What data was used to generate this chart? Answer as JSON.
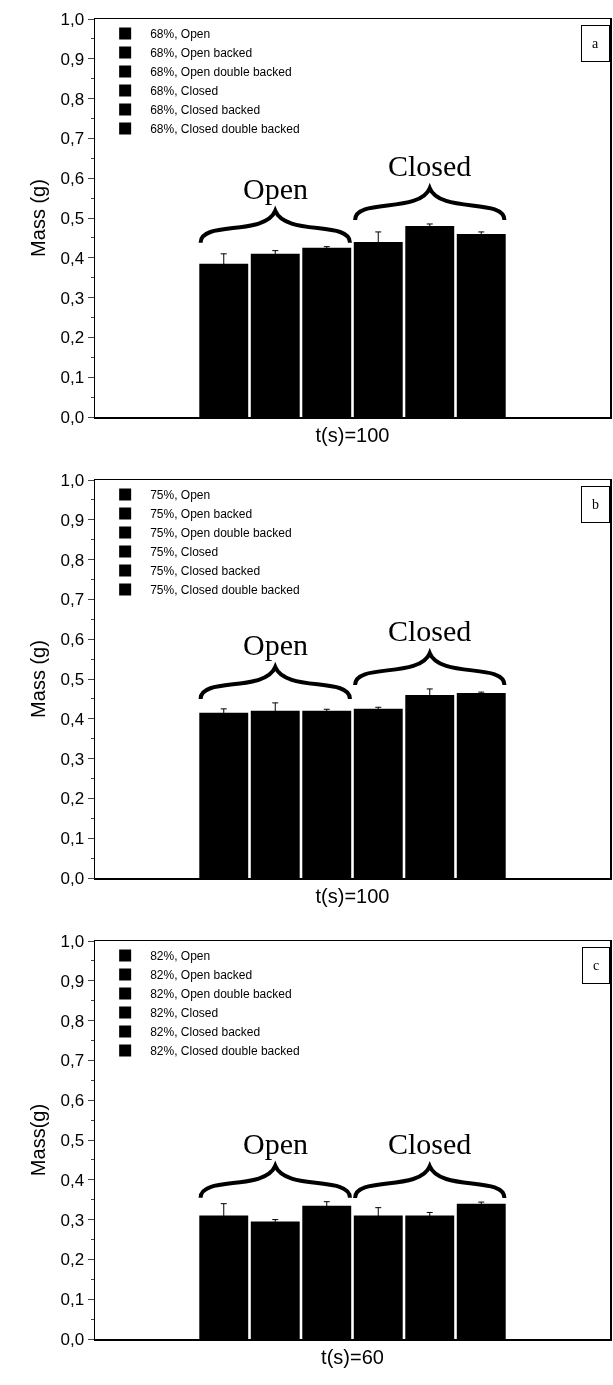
{
  "chart_data": [
    {
      "type": "bar",
      "xlabel": "t(s)=100",
      "ylabel": "Mass (g)",
      "categories": [
        null
      ],
      "ylim": [
        0,
        1
      ],
      "yticks": [
        {
          "value": 0,
          "label": "0,0"
        },
        {
          "value": 0.1,
          "label": "0,1"
        },
        {
          "value": 0.2,
          "label": "0,2"
        },
        {
          "value": 0.3,
          "label": "0,3"
        },
        {
          "value": 0.4,
          "label": "0,4"
        },
        {
          "value": 0.5,
          "label": "0,5"
        },
        {
          "value": 0.6,
          "label": "0,6"
        },
        {
          "value": 0.7,
          "label": "0,7"
        },
        {
          "value": 0.8,
          "label": "0,8"
        },
        {
          "value": 0.9,
          "label": "0,9"
        },
        {
          "value": 1,
          "label": "1,0"
        }
      ],
      "legend": "top left",
      "grid": false,
      "annotations": [
        "a",
        "Open",
        "Closed"
      ],
      "series": [
        {
          "name": "68%, Open",
          "color": "#000000",
          "values": [
            0.385
          ],
          "errors": [
            0.025
          ]
        },
        {
          "name": "68%, Open backed",
          "color": "#000000",
          "values": [
            0.41
          ],
          "errors": [
            0.008
          ]
        },
        {
          "name": "68%, Open double backed",
          "color": "#000000",
          "values": [
            0.425
          ],
          "errors": [
            0.003
          ]
        },
        {
          "name": "68%, Closed",
          "color": "#000000",
          "values": [
            0.44
          ],
          "errors": [
            0.025
          ]
        },
        {
          "name": "68%, Closed backed",
          "color": "#000000",
          "values": [
            0.48
          ],
          "errors": [
            0.005
          ]
        },
        {
          "name": "68%, Closed double backed",
          "color": "#000000",
          "values": [
            0.46
          ],
          "errors": [
            0.005
          ]
        }
      ]
    },
    {
      "type": "bar",
      "xlabel": "t(s)=100",
      "ylabel": "Mass (g)",
      "categories": [
        null
      ],
      "ylim": [
        0,
        1
      ],
      "yticks": [
        {
          "value": 0,
          "label": "0,0"
        },
        {
          "value": 0.1,
          "label": "0,1"
        },
        {
          "value": 0.2,
          "label": "0,2"
        },
        {
          "value": 0.3,
          "label": "0,3"
        },
        {
          "value": 0.4,
          "label": "0,4"
        },
        {
          "value": 0.5,
          "label": "0,5"
        },
        {
          "value": 0.6,
          "label": "0,6"
        },
        {
          "value": 0.7,
          "label": "0,7"
        },
        {
          "value": 0.8,
          "label": "0,8"
        },
        {
          "value": 0.9,
          "label": "0,9"
        },
        {
          "value": 1,
          "label": "1,0"
        }
      ],
      "legend": "top left",
      "grid": false,
      "annotations": [
        "b",
        "Open",
        "Closed"
      ],
      "series": [
        {
          "name": "75%, Open",
          "color": "#000000",
          "values": [
            0.415
          ],
          "errors": [
            0.01
          ]
        },
        {
          "name": "75%, Open backed",
          "color": "#000000",
          "values": [
            0.42
          ],
          "errors": [
            0.02
          ]
        },
        {
          "name": "75%, Open double backed",
          "color": "#000000",
          "values": [
            0.42
          ],
          "errors": [
            0.004
          ]
        },
        {
          "name": "75%, Closed",
          "color": "#000000",
          "values": [
            0.425
          ],
          "errors": [
            0.004
          ]
        },
        {
          "name": "75%, Closed backed",
          "color": "#000000",
          "values": [
            0.46
          ],
          "errors": [
            0.015
          ]
        },
        {
          "name": "75%, Closed double backed",
          "color": "#000000",
          "values": [
            0.465
          ],
          "errors": [
            0.002
          ]
        }
      ]
    },
    {
      "type": "bar",
      "xlabel": "t(s)=60",
      "ylabel": "Mass(g)",
      "categories": [
        null
      ],
      "ylim": [
        0,
        1
      ],
      "yticks": [
        {
          "value": 0,
          "label": "0,0"
        },
        {
          "value": 0.1,
          "label": "0,1"
        },
        {
          "value": 0.2,
          "label": "0,2"
        },
        {
          "value": 0.3,
          "label": "0,3"
        },
        {
          "value": 0.4,
          "label": "0,4"
        },
        {
          "value": 0.5,
          "label": "0,5"
        },
        {
          "value": 0.6,
          "label": "0,6"
        },
        {
          "value": 0.7,
          "label": "0,7"
        },
        {
          "value": 0.8,
          "label": "0,8"
        },
        {
          "value": 0.9,
          "label": "0,9"
        },
        {
          "value": 1,
          "label": "1,0"
        }
      ],
      "legend": "top left",
      "grid": false,
      "annotations": [
        "c",
        "Open",
        "Closed"
      ],
      "series": [
        {
          "name": "82%, Open",
          "color": "#000000",
          "values": [
            0.31
          ],
          "errors": [
            0.03
          ]
        },
        {
          "name": "82%, Open backed",
          "color": "#000000",
          "values": [
            0.295
          ],
          "errors": [
            0.005
          ]
        },
        {
          "name": "82%, Open double backed",
          "color": "#000000",
          "values": [
            0.335
          ],
          "errors": [
            0.01
          ]
        },
        {
          "name": "82%, Closed",
          "color": "#000000",
          "values": [
            0.31
          ],
          "errors": [
            0.02
          ]
        },
        {
          "name": "82%, Closed backed",
          "color": "#000000",
          "values": [
            0.31
          ],
          "errors": [
            0.008
          ]
        },
        {
          "name": "82%, Closed double backed",
          "color": "#000000",
          "values": [
            0.34
          ],
          "errors": [
            0.004
          ]
        }
      ]
    }
  ]
}
